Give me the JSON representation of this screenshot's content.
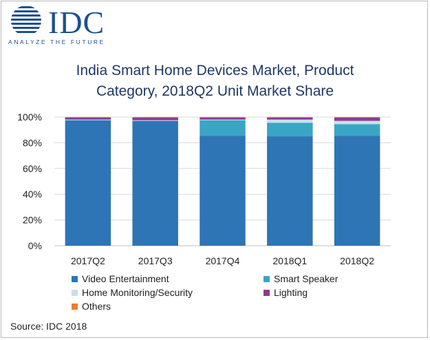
{
  "logo": {
    "name": "IDC",
    "tagline": "ANALYZE THE FUTURE"
  },
  "chart_data": {
    "type": "bar",
    "stacked": true,
    "title_lines": [
      "India Smart Home Devices Market, Product",
      "Category, 2018Q2  Unit Market Share"
    ],
    "categories": [
      "2017Q2",
      "2017Q3",
      "2017Q4",
      "2018Q1",
      "2018Q2"
    ],
    "yticks": [
      "0%",
      "20%",
      "40%",
      "60%",
      "80%",
      "100%"
    ],
    "ylim": [
      0,
      100
    ],
    "grid": true,
    "legend_position": "bottom",
    "series": [
      {
        "name": "Video Entertainment",
        "color": "#2e75b6",
        "values": [
          97.5,
          97,
          85.5,
          85,
          85.5
        ]
      },
      {
        "name": "Smart Speaker",
        "color": "#3aa6c4",
        "values": [
          0,
          0,
          12,
          10.5,
          9
        ]
      },
      {
        "name": "Home Monitoring/Security",
        "color": "#c5e1ee",
        "values": [
          0.5,
          0.5,
          0.5,
          2.5,
          2.5
        ]
      },
      {
        "name": "Lighting",
        "color": "#8e3a8e",
        "values": [
          1.5,
          2,
          1.5,
          1.5,
          2.5
        ]
      },
      {
        "name": "Others",
        "color": "#ed7d31",
        "values": [
          0.5,
          0.5,
          0.5,
          0.5,
          0.5
        ]
      }
    ]
  },
  "source": "Source: IDC 2018"
}
